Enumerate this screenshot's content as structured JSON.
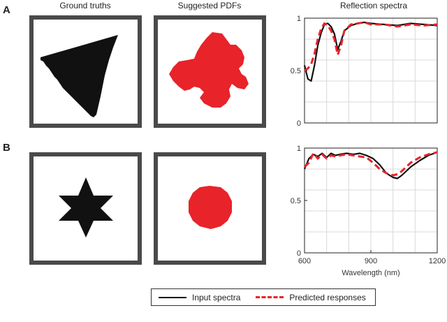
{
  "column_titles": [
    "Ground truths",
    "Suggested PDFs",
    "Reflection spectra"
  ],
  "row_labels": [
    "A",
    "B"
  ],
  "legend": {
    "input_label": "Input spectra",
    "predicted_label": "Predicted responses",
    "input_color": "#111111",
    "predicted_color": "#e8232a"
  },
  "shape_fill": "#111111",
  "pdf_fill": "#e8232a",
  "chart_data": [
    {
      "type": "line",
      "panel": "A",
      "xlim": [
        600,
        1200
      ],
      "ylim": [
        0,
        1
      ],
      "xticks": [],
      "yticks": [
        "0",
        "0.5",
        "1"
      ],
      "grid": true,
      "series": [
        {
          "name": "Input spectra",
          "x": [
            600,
            615,
            630,
            645,
            660,
            675,
            690,
            705,
            720,
            735,
            750,
            765,
            780,
            810,
            840,
            870,
            900,
            960,
            1020,
            1080,
            1140,
            1200
          ],
          "y": [
            0.55,
            0.42,
            0.4,
            0.55,
            0.74,
            0.86,
            0.94,
            0.95,
            0.92,
            0.85,
            0.7,
            0.78,
            0.88,
            0.93,
            0.95,
            0.96,
            0.95,
            0.94,
            0.93,
            0.95,
            0.94,
            0.93
          ]
        },
        {
          "name": "Predicted responses",
          "x": [
            600,
            615,
            630,
            645,
            660,
            675,
            690,
            705,
            720,
            735,
            750,
            765,
            780,
            810,
            840,
            870,
            900,
            960,
            1020,
            1080,
            1140,
            1200
          ],
          "y": [
            0.5,
            0.52,
            0.56,
            0.66,
            0.8,
            0.9,
            0.95,
            0.93,
            0.88,
            0.8,
            0.65,
            0.74,
            0.88,
            0.94,
            0.95,
            0.96,
            0.94,
            0.94,
            0.92,
            0.94,
            0.93,
            0.94
          ]
        }
      ]
    },
    {
      "type": "line",
      "panel": "B",
      "xlim": [
        600,
        1200
      ],
      "ylim": [
        0,
        1
      ],
      "xticks": [
        "600",
        "900",
        "1200"
      ],
      "yticks": [
        "0",
        "0.5",
        "1"
      ],
      "xlabel": "Wavelength (nm)",
      "grid": true,
      "series": [
        {
          "name": "Input spectra",
          "x": [
            600,
            620,
            640,
            660,
            680,
            700,
            720,
            740,
            760,
            790,
            820,
            850,
            880,
            910,
            940,
            970,
            1000,
            1020,
            1040,
            1080,
            1120,
            1160,
            1200
          ],
          "y": [
            0.8,
            0.9,
            0.94,
            0.92,
            0.95,
            0.91,
            0.95,
            0.93,
            0.94,
            0.95,
            0.94,
            0.95,
            0.93,
            0.9,
            0.84,
            0.76,
            0.72,
            0.71,
            0.74,
            0.82,
            0.88,
            0.93,
            0.96
          ]
        },
        {
          "name": "Predicted responses",
          "x": [
            600,
            620,
            640,
            660,
            680,
            700,
            720,
            740,
            760,
            790,
            820,
            850,
            880,
            910,
            940,
            970,
            1000,
            1020,
            1040,
            1080,
            1120,
            1160,
            1200
          ],
          "y": [
            0.82,
            0.86,
            0.95,
            0.9,
            0.94,
            0.9,
            0.93,
            0.92,
            0.93,
            0.94,
            0.93,
            0.92,
            0.91,
            0.86,
            0.8,
            0.76,
            0.74,
            0.75,
            0.78,
            0.86,
            0.91,
            0.94,
            0.96
          ]
        }
      ]
    }
  ]
}
